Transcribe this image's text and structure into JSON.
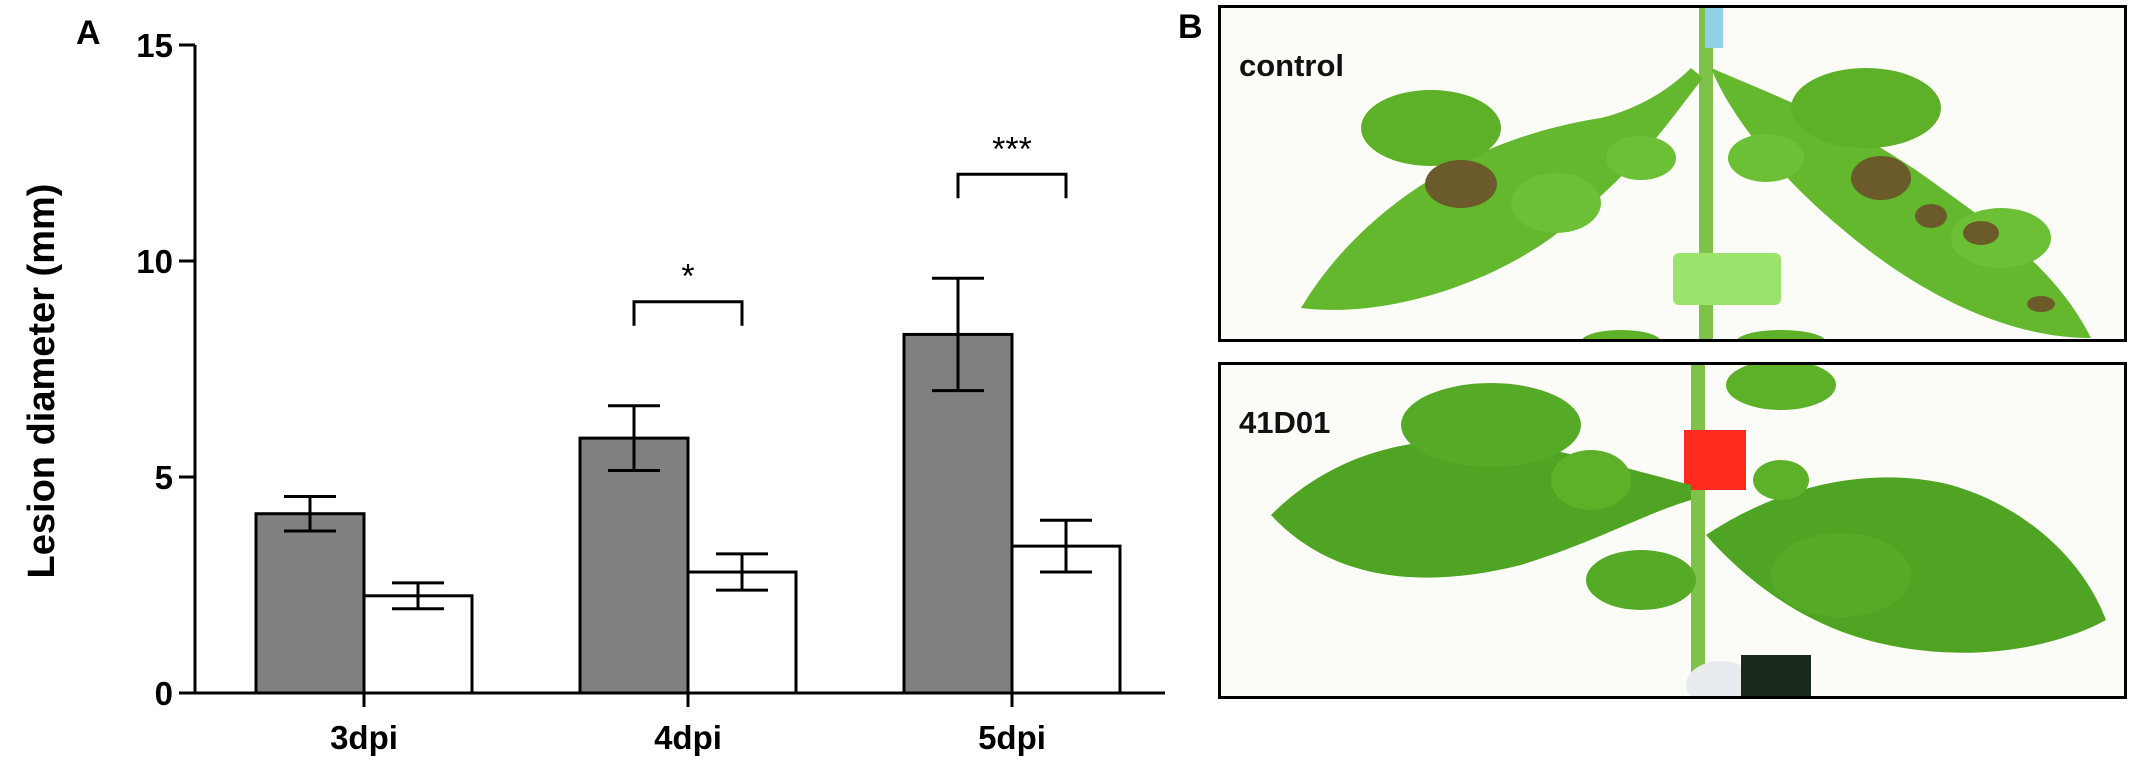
{
  "panel_a_letter": "A",
  "panel_b_letter": "B",
  "chart_data": {
    "type": "bar",
    "title": "",
    "xlabel": "",
    "ylabel": "Lesion diameter (mm)",
    "ylim": [
      0,
      15
    ],
    "yticks": [
      0,
      5,
      10,
      15
    ],
    "categories": [
      "3dpi",
      "4dpi",
      "5dpi"
    ],
    "grid": false,
    "legend": "none",
    "series": [
      {
        "values": [
          4.15,
          5.9,
          8.3
        ],
        "errors": [
          0.4,
          0.75,
          1.3
        ],
        "color": "#808080"
      },
      {
        "values": [
          2.25,
          2.8,
          3.4
        ],
        "errors": [
          0.3,
          0.42,
          0.6
        ],
        "color": "#ffffff"
      }
    ],
    "significance": [
      {
        "category": "4dpi",
        "label": "*"
      },
      {
        "category": "5dpi",
        "label": "***"
      }
    ]
  },
  "photos": [
    {
      "label": "control"
    },
    {
      "label": "41D01"
    }
  ],
  "colors": {
    "bar_treated": "#808080",
    "bar_control": "#ffffff",
    "leaf_green": "#5fb92a",
    "lesion_brown": "#6b5a2a",
    "tape_green": "#9be36a",
    "tape_red": "#ff2a1e"
  }
}
